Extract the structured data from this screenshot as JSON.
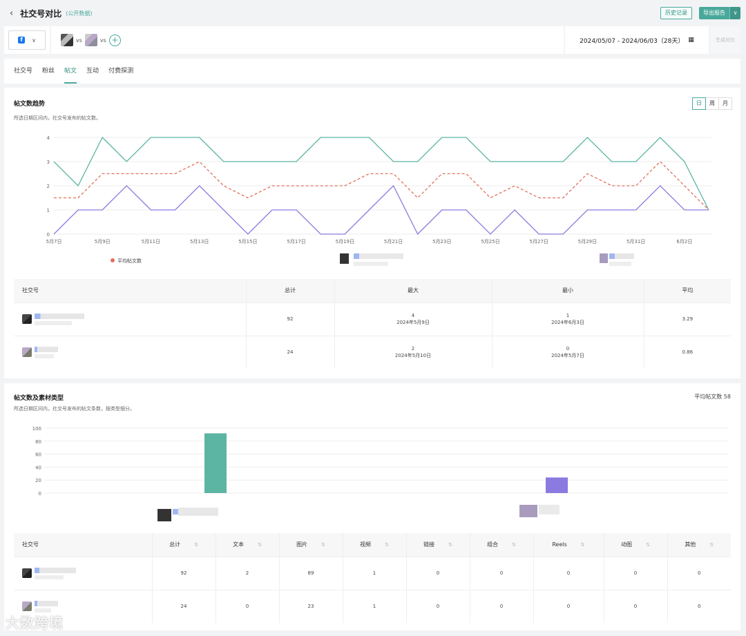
{
  "header": {
    "back_icon": "chevron-left-icon",
    "title": "社交号对比",
    "subtitle": "(公开数据)",
    "history_btn": "历史记录",
    "export_btn": "导出报告"
  },
  "selector": {
    "platform": "f",
    "vs1": "vs",
    "vs2": "vs",
    "add": "+",
    "date_range": "2024/05/07 - 2024/06/03（28天）",
    "generate": "生成对比"
  },
  "tabs": [
    "社交号",
    "粉丝",
    "帖文",
    "互动",
    "付费探测"
  ],
  "active_tab": 2,
  "trend": {
    "title": "帖文数趋势",
    "desc": "所选日期区间内，社交号发布的帖文数。",
    "periods": [
      "日",
      "周",
      "月"
    ],
    "active_period": 0,
    "legend_avg": "平均帖文数",
    "colors": {
      "account1": "#5bb5a2",
      "account2": "#8b7ae0",
      "average": "#e0705a"
    }
  },
  "chart_data": [
    {
      "type": "line",
      "x": [
        "5月7日",
        "5月8日",
        "5月9日",
        "5月10日",
        "5月11日",
        "5月12日",
        "5月13日",
        "5月14日",
        "5月15日",
        "5月16日",
        "5月17日",
        "5月18日",
        "5月19日",
        "5月20日",
        "5月21日",
        "5月22日",
        "5月23日",
        "5月24日",
        "5月25日",
        "5月26日",
        "5月27日",
        "5月28日",
        "5月29日",
        "5月30日",
        "5月31日",
        "6月1日",
        "6月2日",
        "6月3日"
      ],
      "x_tick_labels": [
        "5月7日",
        "5月9日",
        "5月11日",
        "5月13日",
        "5月15日",
        "5月17日",
        "5月19日",
        "5月21日",
        "5月23日",
        "5月25日",
        "5月27日",
        "5月29日",
        "5月31日",
        "6月2日"
      ],
      "ylim": [
        0,
        4
      ],
      "y_ticks": [
        0,
        1,
        2,
        3,
        4
      ],
      "grid": true,
      "series": [
        {
          "key": "account1",
          "values": [
            3,
            2,
            4,
            3,
            4,
            4,
            4,
            3,
            3,
            3,
            3,
            4,
            4,
            4,
            3,
            3,
            4,
            4,
            3,
            3,
            3,
            3,
            4,
            3,
            3,
            4,
            3,
            1
          ]
        },
        {
          "key": "account2",
          "values": [
            0,
            1,
            1,
            2,
            1,
            1,
            2,
            1,
            0,
            1,
            1,
            0,
            0,
            1,
            2,
            0,
            1,
            1,
            0,
            1,
            0,
            0,
            1,
            1,
            1,
            2,
            1,
            1
          ]
        },
        {
          "name": "平均帖文数",
          "key": "average",
          "values": [
            1.5,
            1.5,
            2.5,
            2.5,
            2.5,
            2.5,
            3,
            2,
            1.5,
            2,
            2,
            2,
            2,
            2.5,
            2.5,
            1.5,
            2.5,
            2.5,
            1.5,
            2,
            1.5,
            1.5,
            2.5,
            2,
            2,
            3,
            2,
            1
          ]
        }
      ]
    },
    {
      "type": "bar",
      "categories": [
        "account1",
        "account2"
      ],
      "values": [
        92,
        24
      ],
      "ylim": [
        0,
        100
      ],
      "y_ticks": [
        0,
        20,
        40,
        60,
        80,
        100
      ],
      "grid": true
    }
  ],
  "summary_table": {
    "headers": [
      "社交号",
      "总计",
      "最大",
      "最小",
      "平均"
    ],
    "rows": [
      {
        "total": "92",
        "max": "4",
        "max_date": "2024年5月9日",
        "min": "1",
        "min_date": "2024年6月3日",
        "avg": "3.29"
      },
      {
        "total": "24",
        "max": "2",
        "max_date": "2024年5月10日",
        "min": "0",
        "min_date": "2024年5月7日",
        "avg": "0.86"
      }
    ]
  },
  "types": {
    "title": "帖文数及素材类型",
    "desc": "所选日期区间内，社交号发布的帖文条数，按类型细分。",
    "avg_note": "平均帖文数 58",
    "headers": [
      "社交号",
      "总计",
      "文本",
      "图片",
      "视频",
      "链接",
      "组合",
      "Reels",
      "动图",
      "其他"
    ],
    "rows": [
      [
        "92",
        "2",
        "89",
        "1",
        "0",
        "0",
        "0",
        "0",
        "0"
      ],
      [
        "24",
        "0",
        "23",
        "1",
        "0",
        "0",
        "0",
        "0",
        "0"
      ]
    ]
  },
  "watermark": "大数跨境"
}
